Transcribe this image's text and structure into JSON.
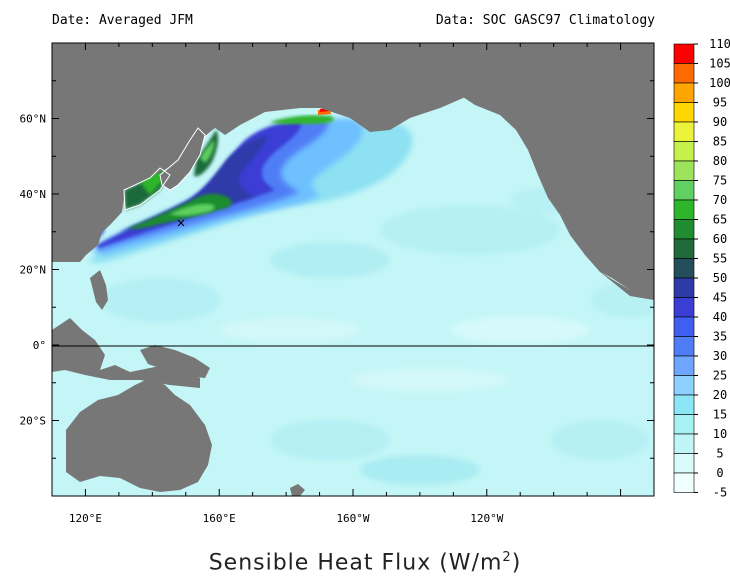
{
  "header": {
    "date_label": "Date: Averaged JFM",
    "source_label": "Data: SOC GASC97 Climatology"
  },
  "map": {
    "projection": "equirectangular",
    "lon_range": [
      110,
      290
    ],
    "lat_range": [
      -40,
      80
    ],
    "lon_tick_labels": [
      {
        "lon": 120,
        "label": "120°E"
      },
      {
        "lon": 160,
        "label": "160°E"
      },
      {
        "lon": 200,
        "label": "160°W"
      },
      {
        "lon": 240,
        "label": "120°W"
      }
    ],
    "lat_tick_labels": [
      {
        "lat": 60,
        "label": "60°N"
      },
      {
        "lat": 40,
        "label": "40°N"
      },
      {
        "lat": 20,
        "label": "20°N"
      },
      {
        "lat": 0,
        "label": "0°"
      },
      {
        "lat": -20,
        "label": "20°S"
      }
    ],
    "land_color": "#777777",
    "equator_line": true
  },
  "colorbar": {
    "levels": [
      "110",
      "105",
      "100",
      "95",
      "90",
      "85",
      "80",
      "75",
      "70",
      "65",
      "60",
      "55",
      "50",
      "45",
      "40",
      "35",
      "30",
      "25",
      "20",
      "15",
      "10",
      "5",
      "0",
      "-5"
    ],
    "colors": [
      "#ff0000",
      "#ff6a00",
      "#ffa500",
      "#ffd700",
      "#eaf33a",
      "#c6f04a",
      "#9de35b",
      "#5fd061",
      "#2db52c",
      "#1f8d2f",
      "#1f6a3a",
      "#244e5c",
      "#2e3aa8",
      "#3a3ed4",
      "#3f5ff0",
      "#4f7df5",
      "#6ea5ff",
      "#8ed0ff",
      "#8be7f5",
      "#a8f1f2",
      "#bff5f5",
      "#d9fafa",
      "#f2ffff"
    ]
  },
  "title": {
    "main": "Sensible Heat Flux (W/m",
    "superscript": "2",
    "suffix": ")"
  }
}
